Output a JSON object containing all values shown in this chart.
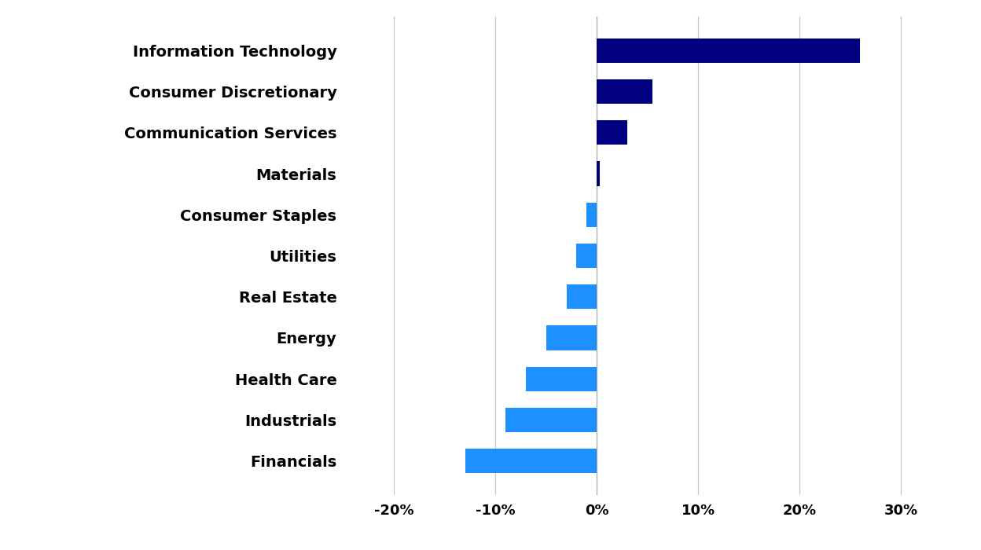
{
  "categories": [
    "Information Technology",
    "Consumer Discretionary",
    "Communication Services",
    "Materials",
    "Consumer Staples",
    "Utilities",
    "Real Estate",
    "Energy",
    "Health Care",
    "Industrials",
    "Financials"
  ],
  "values": [
    26.0,
    5.5,
    3.0,
    0.3,
    -1.0,
    -2.0,
    -3.0,
    -5.0,
    -7.0,
    -9.0,
    -13.0
  ],
  "bar_colors_positive": "#000080",
  "bar_colors_negative": "#1E90FF",
  "xlim": [
    -25,
    35
  ],
  "xticks": [
    -20,
    -10,
    0,
    10,
    20,
    30
  ],
  "xtick_labels": [
    "-20%",
    "-10%",
    "0%",
    "10%",
    "20%",
    "30%"
  ],
  "grid_color": "#c8c8c8",
  "background_color": "#ffffff",
  "label_fontsize": 14,
  "tick_fontsize": 13
}
